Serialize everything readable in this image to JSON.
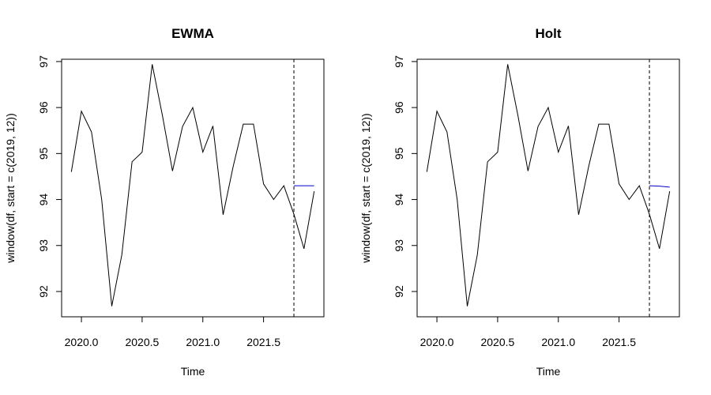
{
  "chart_data": [
    {
      "type": "line",
      "title": "EWMA",
      "xlabel": "Time",
      "ylabel": "window(df, start = c(2019, 12))",
      "xlim": [
        1919.9,
        2021.96
      ],
      "ylim": [
        91.45,
        97.05
      ],
      "xticks": [
        "2020.0",
        "2020.5",
        "2021.0",
        "2021.5"
      ],
      "yticks": [
        "92",
        "93",
        "94",
        "95",
        "96",
        "97"
      ],
      "grid": false,
      "legend": "none",
      "vline": 2021.75,
      "colors": {
        "series": "#000000",
        "forecast": "#0000cc"
      },
      "series": [
        {
          "x": [
            2019.917,
            2020.0,
            2020.083,
            2020.167,
            2020.25,
            2020.333,
            2020.417,
            2020.5,
            2020.583,
            2020.667,
            2020.75,
            2020.833,
            2020.917,
            2021.0,
            2021.083,
            2021.167,
            2021.25,
            2021.333,
            2021.417,
            2021.5,
            2021.583,
            2021.667,
            2021.75,
            2021.833,
            2021.917
          ],
          "values": [
            94.6,
            95.92,
            95.47,
            94.0,
            91.68,
            92.8,
            94.82,
            95.03,
            96.94,
            95.83,
            94.62,
            95.59,
            96.0,
            95.03,
            95.6,
            93.67,
            94.72,
            95.64,
            95.64,
            94.34,
            94.0,
            94.3,
            93.68,
            92.93,
            94.18
          ]
        },
        {
          "x": [
            2021.75,
            2021.833,
            2021.917
          ],
          "values": [
            94.3,
            94.3,
            94.3
          ]
        }
      ]
    },
    {
      "type": "line",
      "title": "Holt",
      "xlabel": "Time",
      "ylabel": "window(df, start = c(2019, 12))",
      "xlim": [
        1919.9,
        2021.96
      ],
      "ylim": [
        91.45,
        97.05
      ],
      "xticks": [
        "2020.0",
        "2020.5",
        "2021.0",
        "2021.5"
      ],
      "yticks": [
        "92",
        "93",
        "94",
        "95",
        "96",
        "97"
      ],
      "grid": false,
      "legend": "none",
      "vline": 2021.75,
      "colors": {
        "series": "#000000",
        "forecast": "#0000cc"
      },
      "series": [
        {
          "x": [
            2019.917,
            2020.0,
            2020.083,
            2020.167,
            2020.25,
            2020.333,
            2020.417,
            2020.5,
            2020.583,
            2020.667,
            2020.75,
            2020.833,
            2020.917,
            2021.0,
            2021.083,
            2021.167,
            2021.25,
            2021.333,
            2021.417,
            2021.5,
            2021.583,
            2021.667,
            2021.75,
            2021.833,
            2021.917
          ],
          "values": [
            94.6,
            95.92,
            95.47,
            94.0,
            91.68,
            92.8,
            94.82,
            95.03,
            96.94,
            95.83,
            94.62,
            95.59,
            96.0,
            95.03,
            95.6,
            93.67,
            94.72,
            95.64,
            95.64,
            94.34,
            94.0,
            94.3,
            93.68,
            92.93,
            94.18
          ]
        },
        {
          "x": [
            2021.75,
            2021.833,
            2021.917
          ],
          "values": [
            94.3,
            94.29,
            94.27
          ]
        }
      ]
    }
  ]
}
